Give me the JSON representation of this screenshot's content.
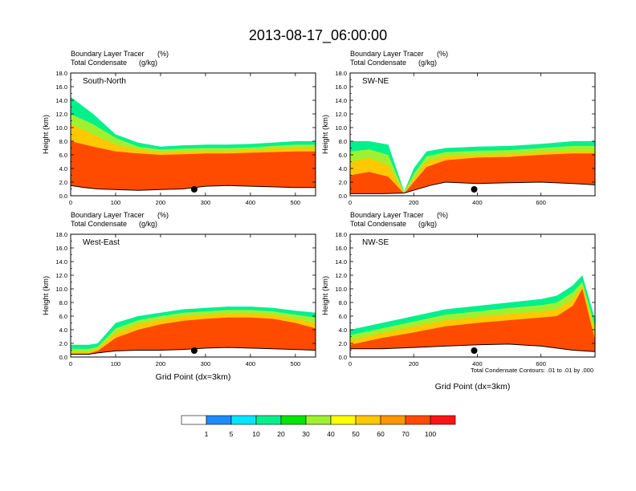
{
  "figure": {
    "title": "2013-08-17_06:00:00",
    "footnote": "Total Condensate Contours: .01 to .01 by .000"
  },
  "colorbar": {
    "levels": [
      "1",
      "5",
      "10",
      "20",
      "30",
      "40",
      "50",
      "60",
      "70",
      "100"
    ],
    "colors": [
      "#ffffff",
      "#1e8cff",
      "#00e6ff",
      "#00f08c",
      "#00e600",
      "#a0f032",
      "#ffff00",
      "#ffc800",
      "#ff9600",
      "#ff4b00",
      "#ff1414"
    ]
  },
  "chart_data": [
    {
      "type": "heatmap",
      "panel_label": "South-North",
      "subtitle_left": "Boundary Layer Tracer",
      "subtitle_left_units": "(%)",
      "subtitle_left2": "Total Condensate",
      "subtitle_left2_units": "(g/kg)",
      "ylabel": "Height (km)",
      "xlabel": "",
      "xlim": [
        0,
        545
      ],
      "ylim": [
        0,
        18
      ],
      "xticks": [
        "0",
        "100",
        "200",
        "300",
        "400",
        "500"
      ],
      "yticks": [
        "0.0",
        "2.0",
        "4.0",
        "6.0",
        "8.0",
        "10.0",
        "12.0",
        "14.0",
        "16.0",
        "18.0"
      ],
      "marker_x": 275,
      "terrain": [
        [
          0,
          1.5
        ],
        [
          30,
          1.2
        ],
        [
          60,
          1.0
        ],
        [
          100,
          0.9
        ],
        [
          150,
          0.8
        ],
        [
          200,
          0.9
        ],
        [
          250,
          1.0
        ],
        [
          300,
          1.4
        ],
        [
          350,
          1.5
        ],
        [
          400,
          1.4
        ],
        [
          450,
          1.3
        ],
        [
          500,
          1.2
        ],
        [
          545,
          1.2
        ]
      ],
      "layers": [
        {
          "level": 10,
          "x": [
            0,
            50,
            100,
            150,
            200,
            250,
            300,
            350,
            400,
            450,
            500,
            545
          ],
          "top": [
            14.5,
            12.0,
            9.0,
            7.8,
            7.2,
            7.4,
            7.5,
            7.5,
            7.6,
            7.8,
            8.0,
            8.0
          ]
        },
        {
          "level": 30,
          "x": [
            0,
            50,
            100,
            150,
            200,
            250,
            300,
            350,
            400,
            450,
            500,
            545
          ],
          "top": [
            12.0,
            10.5,
            8.5,
            7.2,
            6.8,
            6.9,
            7.0,
            7.0,
            7.1,
            7.3,
            7.5,
            7.5
          ]
        },
        {
          "level": 50,
          "x": [
            0,
            50,
            100,
            150,
            200,
            250,
            300,
            350,
            400,
            450,
            500,
            545
          ],
          "top": [
            10.5,
            9.0,
            7.5,
            6.8,
            6.4,
            6.5,
            6.6,
            6.6,
            6.7,
            6.9,
            7.0,
            7.0
          ]
        },
        {
          "level": 70,
          "x": [
            0,
            50,
            100,
            150,
            200,
            250,
            300,
            350,
            400,
            450,
            500,
            545
          ],
          "top": [
            8.0,
            7.2,
            6.5,
            6.2,
            6.0,
            6.1,
            6.2,
            6.2,
            6.3,
            6.4,
            6.5,
            6.5
          ]
        }
      ]
    },
    {
      "type": "heatmap",
      "panel_label": "SW-NE",
      "subtitle_left": "Boundary Layer Tracer",
      "subtitle_left_units": "(%)",
      "subtitle_left2": "Total Condensate",
      "subtitle_left2_units": "(g/kg)",
      "ylabel": "Height (km)",
      "xlabel": "",
      "xlim": [
        0,
        770
      ],
      "ylim": [
        0,
        18
      ],
      "xticks": [
        "0",
        "200",
        "400",
        "600"
      ],
      "yticks": [
        "0.0",
        "2.0",
        "4.0",
        "6.0",
        "8.0",
        "10.0",
        "12.0",
        "14.0",
        "16.0",
        "18.0"
      ],
      "marker_x": 390,
      "terrain": [
        [
          0,
          0.3
        ],
        [
          100,
          0.3
        ],
        [
          170,
          0.4
        ],
        [
          200,
          0.8
        ],
        [
          250,
          1.5
        ],
        [
          300,
          2.0
        ],
        [
          400,
          1.8
        ],
        [
          500,
          1.9
        ],
        [
          600,
          2.0
        ],
        [
          700,
          1.8
        ],
        [
          770,
          1.6
        ]
      ],
      "layers": [
        {
          "level": 10,
          "x": [
            0,
            60,
            120,
            170,
            200,
            240,
            300,
            400,
            500,
            600,
            700,
            770
          ],
          "top": [
            8.0,
            8.0,
            7.5,
            0.6,
            4.0,
            6.5,
            7.0,
            7.2,
            7.3,
            7.6,
            8.0,
            8.0
          ]
        },
        {
          "level": 30,
          "x": [
            0,
            60,
            120,
            170,
            200,
            240,
            300,
            400,
            500,
            600,
            700,
            770
          ],
          "top": [
            6.5,
            6.8,
            6.0,
            0.5,
            3.2,
            5.8,
            6.4,
            6.6,
            6.7,
            7.0,
            7.3,
            7.3
          ]
        },
        {
          "level": 50,
          "x": [
            0,
            60,
            120,
            170,
            200,
            240,
            300,
            400,
            500,
            600,
            700,
            770
          ],
          "top": [
            5.0,
            5.5,
            4.5,
            0.4,
            2.5,
            5.0,
            5.8,
            6.0,
            6.1,
            6.4,
            6.6,
            6.6
          ]
        },
        {
          "level": 70,
          "x": [
            0,
            60,
            120,
            170,
            200,
            240,
            300,
            400,
            500,
            600,
            700,
            770
          ],
          "top": [
            3.0,
            3.5,
            2.8,
            0.3,
            2.0,
            4.2,
            5.2,
            5.6,
            5.7,
            6.0,
            6.2,
            6.2
          ]
        }
      ]
    },
    {
      "type": "heatmap",
      "panel_label": "West-East",
      "subtitle_left": "Boundary Layer Tracer",
      "subtitle_left_units": "(%)",
      "subtitle_left2": "Total Condensate",
      "subtitle_left2_units": "(g/kg)",
      "ylabel": "Height (km)",
      "xlabel": "Grid Point (dx=3km)",
      "xlim": [
        0,
        545
      ],
      "ylim": [
        0,
        18
      ],
      "xticks": [
        "0",
        "100",
        "200",
        "300",
        "400",
        "500"
      ],
      "yticks": [
        "0.0",
        "2.0",
        "4.0",
        "6.0",
        "8.0",
        "10.0",
        "12.0",
        "14.0",
        "16.0",
        "18.0"
      ],
      "marker_x": 275,
      "terrain": [
        [
          0,
          0.4
        ],
        [
          40,
          0.4
        ],
        [
          60,
          0.6
        ],
        [
          100,
          0.9
        ],
        [
          150,
          1.0
        ],
        [
          200,
          1.0
        ],
        [
          250,
          1.1
        ],
        [
          300,
          1.3
        ],
        [
          350,
          1.4
        ],
        [
          400,
          1.3
        ],
        [
          450,
          1.2
        ],
        [
          500,
          1.1
        ],
        [
          545,
          1.0
        ]
      ],
      "layers": [
        {
          "level": 10,
          "x": [
            0,
            40,
            60,
            100,
            150,
            200,
            250,
            300,
            350,
            400,
            450,
            500,
            545
          ],
          "top": [
            1.8,
            1.8,
            2.0,
            5.0,
            6.0,
            6.5,
            7.0,
            7.2,
            7.4,
            7.4,
            7.2,
            6.8,
            6.5
          ]
        },
        {
          "level": 30,
          "x": [
            0,
            40,
            60,
            100,
            150,
            200,
            250,
            300,
            350,
            400,
            450,
            500,
            545
          ],
          "top": [
            1.2,
            1.2,
            1.5,
            4.2,
            5.4,
            6.0,
            6.5,
            6.7,
            6.9,
            6.9,
            6.7,
            6.2,
            5.8
          ]
        },
        {
          "level": 50,
          "x": [
            0,
            40,
            60,
            100,
            150,
            200,
            250,
            300,
            350,
            400,
            450,
            500,
            545
          ],
          "top": [
            0.8,
            0.8,
            1.2,
            3.5,
            4.8,
            5.5,
            6.0,
            6.2,
            6.4,
            6.4,
            6.2,
            5.6,
            5.0
          ]
        },
        {
          "level": 70,
          "x": [
            0,
            40,
            60,
            100,
            150,
            200,
            250,
            300,
            350,
            400,
            450,
            500,
            545
          ],
          "top": [
            0.5,
            0.5,
            0.9,
            2.8,
            4.0,
            4.8,
            5.3,
            5.6,
            5.8,
            5.8,
            5.6,
            5.0,
            4.2
          ]
        }
      ]
    },
    {
      "type": "heatmap",
      "panel_label": "NW-SE",
      "subtitle_left": "Boundary Layer Tracer",
      "subtitle_left_units": "(%)",
      "subtitle_left2": "Total Condensate",
      "subtitle_left2_units": "(g/kg)",
      "ylabel": "Height (km)",
      "xlabel": "Grid Point (dx=3km)",
      "xlim": [
        0,
        770
      ],
      "ylim": [
        0,
        18
      ],
      "xticks": [
        "0",
        "200",
        "400",
        "600"
      ],
      "yticks": [
        "0.0",
        "2.0",
        "4.0",
        "6.0",
        "8.0",
        "10.0",
        "12.0",
        "14.0",
        "16.0",
        "18.0"
      ],
      "marker_x": 390,
      "terrain": [
        [
          0,
          1.2
        ],
        [
          100,
          1.2
        ],
        [
          200,
          1.4
        ],
        [
          300,
          1.6
        ],
        [
          400,
          1.8
        ],
        [
          500,
          1.9
        ],
        [
          600,
          1.6
        ],
        [
          700,
          1.0
        ],
        [
          770,
          0.8
        ]
      ],
      "layers": [
        {
          "level": 10,
          "x": [
            0,
            100,
            200,
            300,
            400,
            500,
            600,
            650,
            700,
            730,
            770
          ],
          "top": [
            4.0,
            5.0,
            6.0,
            7.0,
            7.5,
            8.0,
            8.5,
            9.0,
            10.5,
            12.0,
            5.5
          ]
        },
        {
          "level": 30,
          "x": [
            0,
            100,
            200,
            300,
            400,
            500,
            600,
            650,
            700,
            730,
            770
          ],
          "top": [
            3.2,
            4.2,
            5.2,
            6.2,
            6.7,
            7.2,
            7.6,
            8.0,
            9.5,
            11.0,
            4.5
          ]
        },
        {
          "level": 50,
          "x": [
            0,
            100,
            200,
            300,
            400,
            500,
            600,
            650,
            700,
            730,
            770
          ],
          "top": [
            2.5,
            3.5,
            4.5,
            5.4,
            5.9,
            6.3,
            6.7,
            7.0,
            8.5,
            10.5,
            3.5
          ]
        },
        {
          "level": 70,
          "x": [
            0,
            100,
            200,
            300,
            400,
            500,
            600,
            650,
            700,
            730,
            770
          ],
          "top": [
            1.8,
            2.8,
            3.6,
            4.5,
            5.0,
            5.4,
            5.8,
            6.0,
            7.5,
            10.0,
            2.5
          ]
        }
      ]
    }
  ]
}
